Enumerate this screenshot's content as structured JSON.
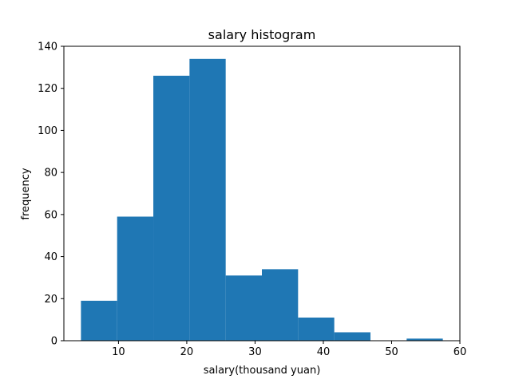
{
  "chart_data": {
    "type": "bar",
    "title": "salary histogram",
    "xlabel": "salary(thousand yuan)",
    "ylabel": "frequency",
    "bin_edges": [
      4.5,
      9.8,
      15.1,
      20.4,
      25.7,
      31.0,
      36.3,
      41.6,
      46.9,
      52.2,
      57.5
    ],
    "values": [
      19,
      59,
      126,
      134,
      31,
      34,
      11,
      4,
      0,
      1
    ],
    "xlim": [
      2.0,
      60.0
    ],
    "ylim": [
      0,
      140
    ],
    "xticks": [
      10,
      20,
      30,
      40,
      50,
      60
    ],
    "yticks": [
      0,
      20,
      40,
      60,
      80,
      100,
      120,
      140
    ],
    "bar_color": "#1f77b4",
    "grid": false
  }
}
